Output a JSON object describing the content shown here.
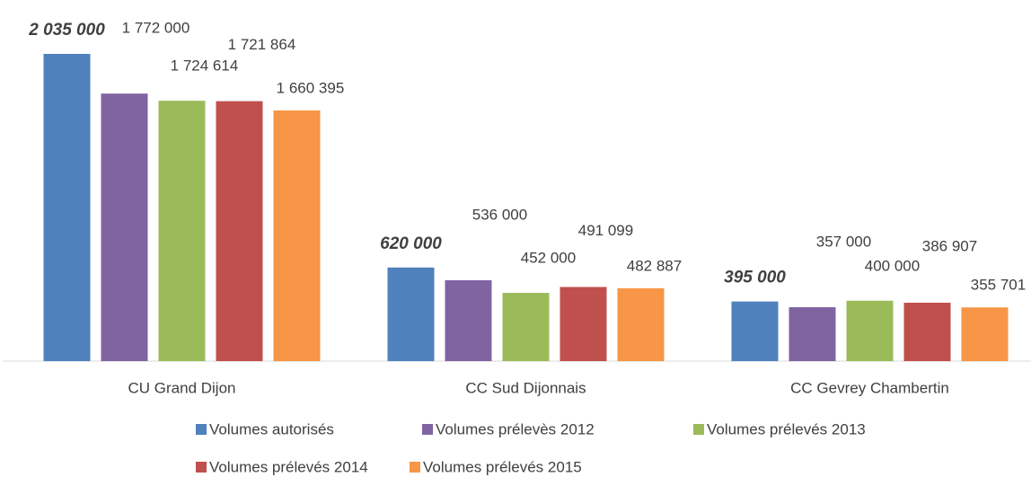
{
  "chart_data": {
    "type": "bar",
    "categories": [
      "CU Grand Dijon",
      "CC Sud Dijonnais",
      "CC Gevrey Chambertin"
    ],
    "series": [
      {
        "name": "Volumes autorisés",
        "color": "#4f81bd",
        "values": [
          2035000,
          620000,
          395000
        ],
        "value_labels": [
          "2 035 000",
          "620 000",
          "395 000"
        ]
      },
      {
        "name": "Volumes prélevès 2012",
        "color": "#8064a2",
        "values": [
          1772000,
          536000,
          357000
        ],
        "value_labels": [
          "1 772 000",
          "536 000",
          "357 000"
        ]
      },
      {
        "name": "Volumes prélevés 2013",
        "color": "#9bbb59",
        "values": [
          1724614,
          452000,
          400000
        ],
        "value_labels": [
          "1 724 614",
          "452 000",
          "400 000"
        ]
      },
      {
        "name": "Volumes prélevés 2014",
        "color": "#c0504d",
        "values": [
          1721864,
          491099,
          386907
        ],
        "value_labels": [
          "1 721 864",
          "491 099",
          "386 907"
        ]
      },
      {
        "name": "Volumes prélevés 2015",
        "color": "#f79646",
        "values": [
          1660395,
          482887,
          355701
        ],
        "value_labels": [
          "1 660 395",
          "482 887",
          "355 701"
        ]
      }
    ],
    "legend": "bottom"
  }
}
